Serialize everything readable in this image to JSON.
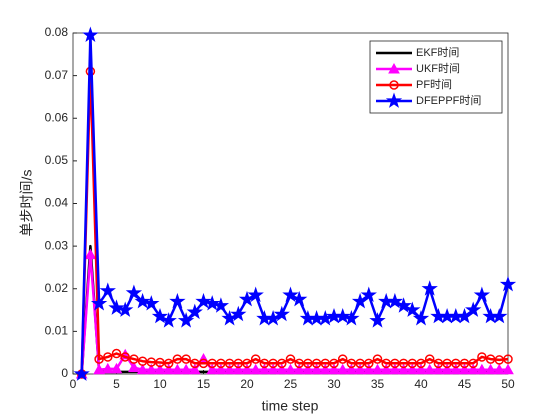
{
  "chart_data": {
    "type": "line",
    "x_label": "time step",
    "y_label": "单步时间/s",
    "x": [
      1,
      2,
      3,
      4,
      5,
      6,
      7,
      8,
      9,
      10,
      11,
      12,
      13,
      14,
      15,
      16,
      17,
      18,
      19,
      20,
      21,
      22,
      23,
      24,
      25,
      26,
      27,
      28,
      29,
      30,
      31,
      32,
      33,
      34,
      35,
      36,
      37,
      38,
      39,
      40,
      41,
      42,
      43,
      44,
      45,
      46,
      47,
      48,
      49,
      50
    ],
    "xlim": [
      0,
      50
    ],
    "xticks": [
      0,
      5,
      10,
      15,
      20,
      25,
      30,
      35,
      40,
      45,
      50
    ],
    "ylim": [
      0,
      0.08
    ],
    "yticks": [
      0,
      0.01,
      0.02,
      0.03,
      0.04,
      0.05,
      0.06,
      0.07,
      0.08
    ],
    "legend": "northeast",
    "series": [
      {
        "name": "EKF时间",
        "color": "#000000",
        "marker": "none",
        "values": [
          0,
          0.03,
          0.0005,
          0.0005,
          0.0005,
          0.0005,
          0.0005,
          0.0005,
          0.0005,
          0.0005,
          0.0005,
          0.0005,
          0.0005,
          0.0005,
          0.0005,
          0.0005,
          0.0005,
          0.0005,
          0.0005,
          0.0005,
          0.0005,
          0.0005,
          0.0005,
          0.0005,
          0.0005,
          0.0005,
          0.0005,
          0.0005,
          0.0005,
          0.0005,
          0.0005,
          0.0005,
          0.0005,
          0.0005,
          0.0005,
          0.0005,
          0.0005,
          0.0005,
          0.0005,
          0.0005,
          0.0005,
          0.0005,
          0.0005,
          0.0005,
          0.0005,
          0.0005,
          0.0005,
          0.0005,
          0.0005,
          0.0005
        ]
      },
      {
        "name": "UKF时间",
        "color": "#ff00ff",
        "marker": "triangle",
        "values": [
          0,
          0.028,
          0.001,
          0.0012,
          0.0012,
          0.0045,
          0.0015,
          0.001,
          0.001,
          0.001,
          0.001,
          0.001,
          0.001,
          0.001,
          0.0035,
          0.001,
          0.001,
          0.001,
          0.001,
          0.001,
          0.001,
          0.001,
          0.001,
          0.001,
          0.001,
          0.001,
          0.001,
          0.001,
          0.001,
          0.001,
          0.001,
          0.001,
          0.001,
          0.001,
          0.001,
          0.001,
          0.001,
          0.001,
          0.001,
          0.001,
          0.001,
          0.001,
          0.001,
          0.001,
          0.001,
          0.001,
          0.001,
          0.001,
          0.001,
          0.001
        ]
      },
      {
        "name": "PF时间",
        "color": "#ff0000",
        "marker": "circle",
        "values": [
          0,
          0.071,
          0.0035,
          0.004,
          0.0048,
          0.004,
          0.0035,
          0.003,
          0.0028,
          0.0027,
          0.0025,
          0.0035,
          0.0035,
          0.0025,
          0.0025,
          0.0025,
          0.0025,
          0.0025,
          0.0025,
          0.0025,
          0.0035,
          0.0025,
          0.0025,
          0.0025,
          0.0035,
          0.0025,
          0.0025,
          0.0025,
          0.0025,
          0.0025,
          0.0035,
          0.0025,
          0.0025,
          0.0025,
          0.0035,
          0.0025,
          0.0025,
          0.0025,
          0.0025,
          0.0025,
          0.0035,
          0.0025,
          0.0025,
          0.0025,
          0.0025,
          0.0025,
          0.004,
          0.0035,
          0.0033,
          0.0035
        ]
      },
      {
        "name": "DFEPPF时间",
        "color": "#0000ff",
        "marker": "star",
        "values": [
          0,
          0.0795,
          0.0165,
          0.0195,
          0.0155,
          0.015,
          0.019,
          0.017,
          0.0165,
          0.0135,
          0.0125,
          0.017,
          0.0125,
          0.0145,
          0.017,
          0.0165,
          0.016,
          0.013,
          0.014,
          0.0175,
          0.0185,
          0.013,
          0.013,
          0.014,
          0.0185,
          0.0175,
          0.013,
          0.013,
          0.013,
          0.0135,
          0.0135,
          0.013,
          0.017,
          0.0185,
          0.0125,
          0.017,
          0.017,
          0.016,
          0.015,
          0.013,
          0.02,
          0.0135,
          0.0135,
          0.0135,
          0.0135,
          0.015,
          0.0185,
          0.0135,
          0.0135,
          0.021
        ]
      }
    ]
  }
}
